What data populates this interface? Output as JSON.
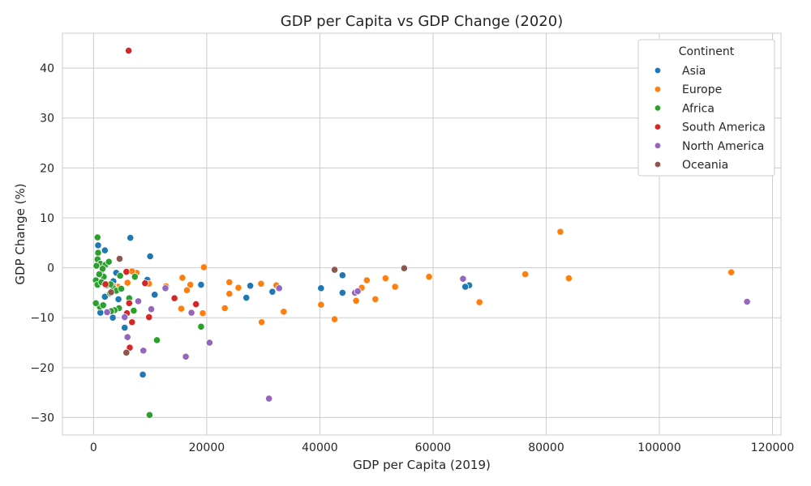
{
  "chart_data": {
    "type": "scatter",
    "title": "GDP per Capita vs GDP Change (2020)",
    "xlabel": "GDP per Capita (2019)",
    "ylabel": "GDP Change (%)",
    "xlim": [
      -5500,
      121500
    ],
    "ylim": [
      -33.5,
      47
    ],
    "xticks": [
      0,
      20000,
      40000,
      60000,
      80000,
      100000,
      120000
    ],
    "xtick_labels": [
      "0",
      "20000",
      "40000",
      "60000",
      "80000",
      "100000",
      "120000"
    ],
    "yticks": [
      -30,
      -20,
      -10,
      0,
      10,
      20,
      30,
      40
    ],
    "ytick_labels": [
      "−30",
      "−20",
      "−10",
      "0",
      "10",
      "20",
      "30",
      "40"
    ],
    "grid": true,
    "legend": {
      "title": "Continent",
      "position": "top-right"
    },
    "series": [
      {
        "name": "Asia",
        "color": "#1f77b4",
        "points": [
          [
            6500,
            6
          ],
          [
            800,
            4.5
          ],
          [
            2000,
            3.5
          ],
          [
            10000,
            2.3
          ],
          [
            44000,
            -1.5
          ],
          [
            4000,
            -1
          ],
          [
            9500,
            -2.4
          ],
          [
            19000,
            -3.4
          ],
          [
            1500,
            -1.5
          ],
          [
            3500,
            -2.7
          ],
          [
            27700,
            -3.6
          ],
          [
            40200,
            -4.1
          ],
          [
            31600,
            -4.8
          ],
          [
            44000,
            -5
          ],
          [
            66400,
            -3.5
          ],
          [
            65700,
            -3.8
          ],
          [
            10800,
            -5.4
          ],
          [
            27000,
            -6
          ],
          [
            4400,
            -6.3
          ],
          [
            1200,
            -9
          ],
          [
            3400,
            -10
          ],
          [
            5500,
            -12
          ],
          [
            8700,
            -21.4
          ],
          [
            2000,
            -5.8
          ]
        ]
      },
      {
        "name": "Europe",
        "color": "#ff7f0e",
        "points": [
          [
            82500,
            7.2
          ],
          [
            112700,
            -0.9
          ],
          [
            84000,
            -2.1
          ],
          [
            76300,
            -1.3
          ],
          [
            59300,
            -1.8
          ],
          [
            51600,
            -2.1
          ],
          [
            48300,
            -2.5
          ],
          [
            53300,
            -3.8
          ],
          [
            47400,
            -4
          ],
          [
            46400,
            -6.6
          ],
          [
            49800,
            -6.3
          ],
          [
            68200,
            -6.9
          ],
          [
            42600,
            -10.3
          ],
          [
            40200,
            -7.4
          ],
          [
            33600,
            -8.8
          ],
          [
            29700,
            -10.9
          ],
          [
            32300,
            -3.5
          ],
          [
            29600,
            -3.2
          ],
          [
            25600,
            -4
          ],
          [
            24000,
            -2.9
          ],
          [
            23200,
            -8.1
          ],
          [
            19500,
            0.1
          ],
          [
            19300,
            -9.1
          ],
          [
            17100,
            -3.4
          ],
          [
            16500,
            -4.5
          ],
          [
            15700,
            -2
          ],
          [
            15500,
            -8.2
          ],
          [
            12800,
            -3.7
          ],
          [
            9800,
            -3.2
          ],
          [
            7600,
            -1
          ],
          [
            6800,
            -0.7
          ],
          [
            6000,
            -3
          ],
          [
            4300,
            -3.8
          ],
          [
            3500,
            -3.7
          ],
          [
            24000,
            -5.2
          ]
        ]
      },
      {
        "name": "Africa",
        "color": "#2ca02c",
        "points": [
          [
            700,
            6.1
          ],
          [
            800,
            3
          ],
          [
            700,
            1.7
          ],
          [
            1200,
            0.8
          ],
          [
            2100,
            0.6
          ],
          [
            2700,
            1.2
          ],
          [
            500,
            0.4
          ],
          [
            1600,
            -0.2
          ],
          [
            1800,
            -1.8
          ],
          [
            400,
            -2.5
          ],
          [
            700,
            -3.4
          ],
          [
            1000,
            -1.3
          ],
          [
            1400,
            -2.9
          ],
          [
            2300,
            -3.5
          ],
          [
            3500,
            -4.1
          ],
          [
            4000,
            -4.6
          ],
          [
            4500,
            -8.1
          ],
          [
            3700,
            -8.5
          ],
          [
            3100,
            -8.7
          ],
          [
            1100,
            -7.8
          ],
          [
            1700,
            -7.5
          ],
          [
            400,
            -7.1
          ],
          [
            3000,
            -3.3
          ],
          [
            4700,
            -1.6
          ],
          [
            7100,
            -8.6
          ],
          [
            6300,
            -6.1
          ],
          [
            7300,
            -1.8
          ],
          [
            11200,
            -14.5
          ],
          [
            19000,
            -11.8
          ],
          [
            9900,
            -29.5
          ],
          [
            4900,
            -4.2
          ],
          [
            2900,
            -5.1
          ]
        ]
      },
      {
        "name": "South America",
        "color": "#d62728",
        "points": [
          [
            6200,
            43.5
          ],
          [
            9100,
            -3.1
          ],
          [
            5800,
            -0.8
          ],
          [
            6300,
            -7.1
          ],
          [
            6800,
            -10.9
          ],
          [
            9800,
            -9.9
          ],
          [
            14300,
            -6.1
          ],
          [
            18100,
            -7.3
          ],
          [
            6400,
            -16
          ],
          [
            5900,
            -9.1
          ],
          [
            2100,
            -3.3
          ]
        ]
      },
      {
        "name": "North America",
        "color": "#9467bd",
        "points": [
          [
            115500,
            -6.8
          ],
          [
            65300,
            -2.2
          ],
          [
            46200,
            -5
          ],
          [
            46700,
            -4.7
          ],
          [
            32800,
            -4.1
          ],
          [
            31000,
            -26.2
          ],
          [
            20500,
            -15
          ],
          [
            16300,
            -17.8
          ],
          [
            12700,
            -4.1
          ],
          [
            10200,
            -8.3
          ],
          [
            8800,
            -16.6
          ],
          [
            7900,
            -6.7
          ],
          [
            6000,
            -13.9
          ],
          [
            5500,
            -9.9
          ],
          [
            2400,
            -8.9
          ],
          [
            17300,
            -9
          ]
        ]
      },
      {
        "name": "Oceania",
        "color": "#8c564b",
        "points": [
          [
            54900,
            -0.1
          ],
          [
            42600,
            -0.4
          ],
          [
            4600,
            1.8
          ],
          [
            5800,
            -17
          ],
          [
            3100,
            -4.9
          ]
        ]
      }
    ]
  }
}
